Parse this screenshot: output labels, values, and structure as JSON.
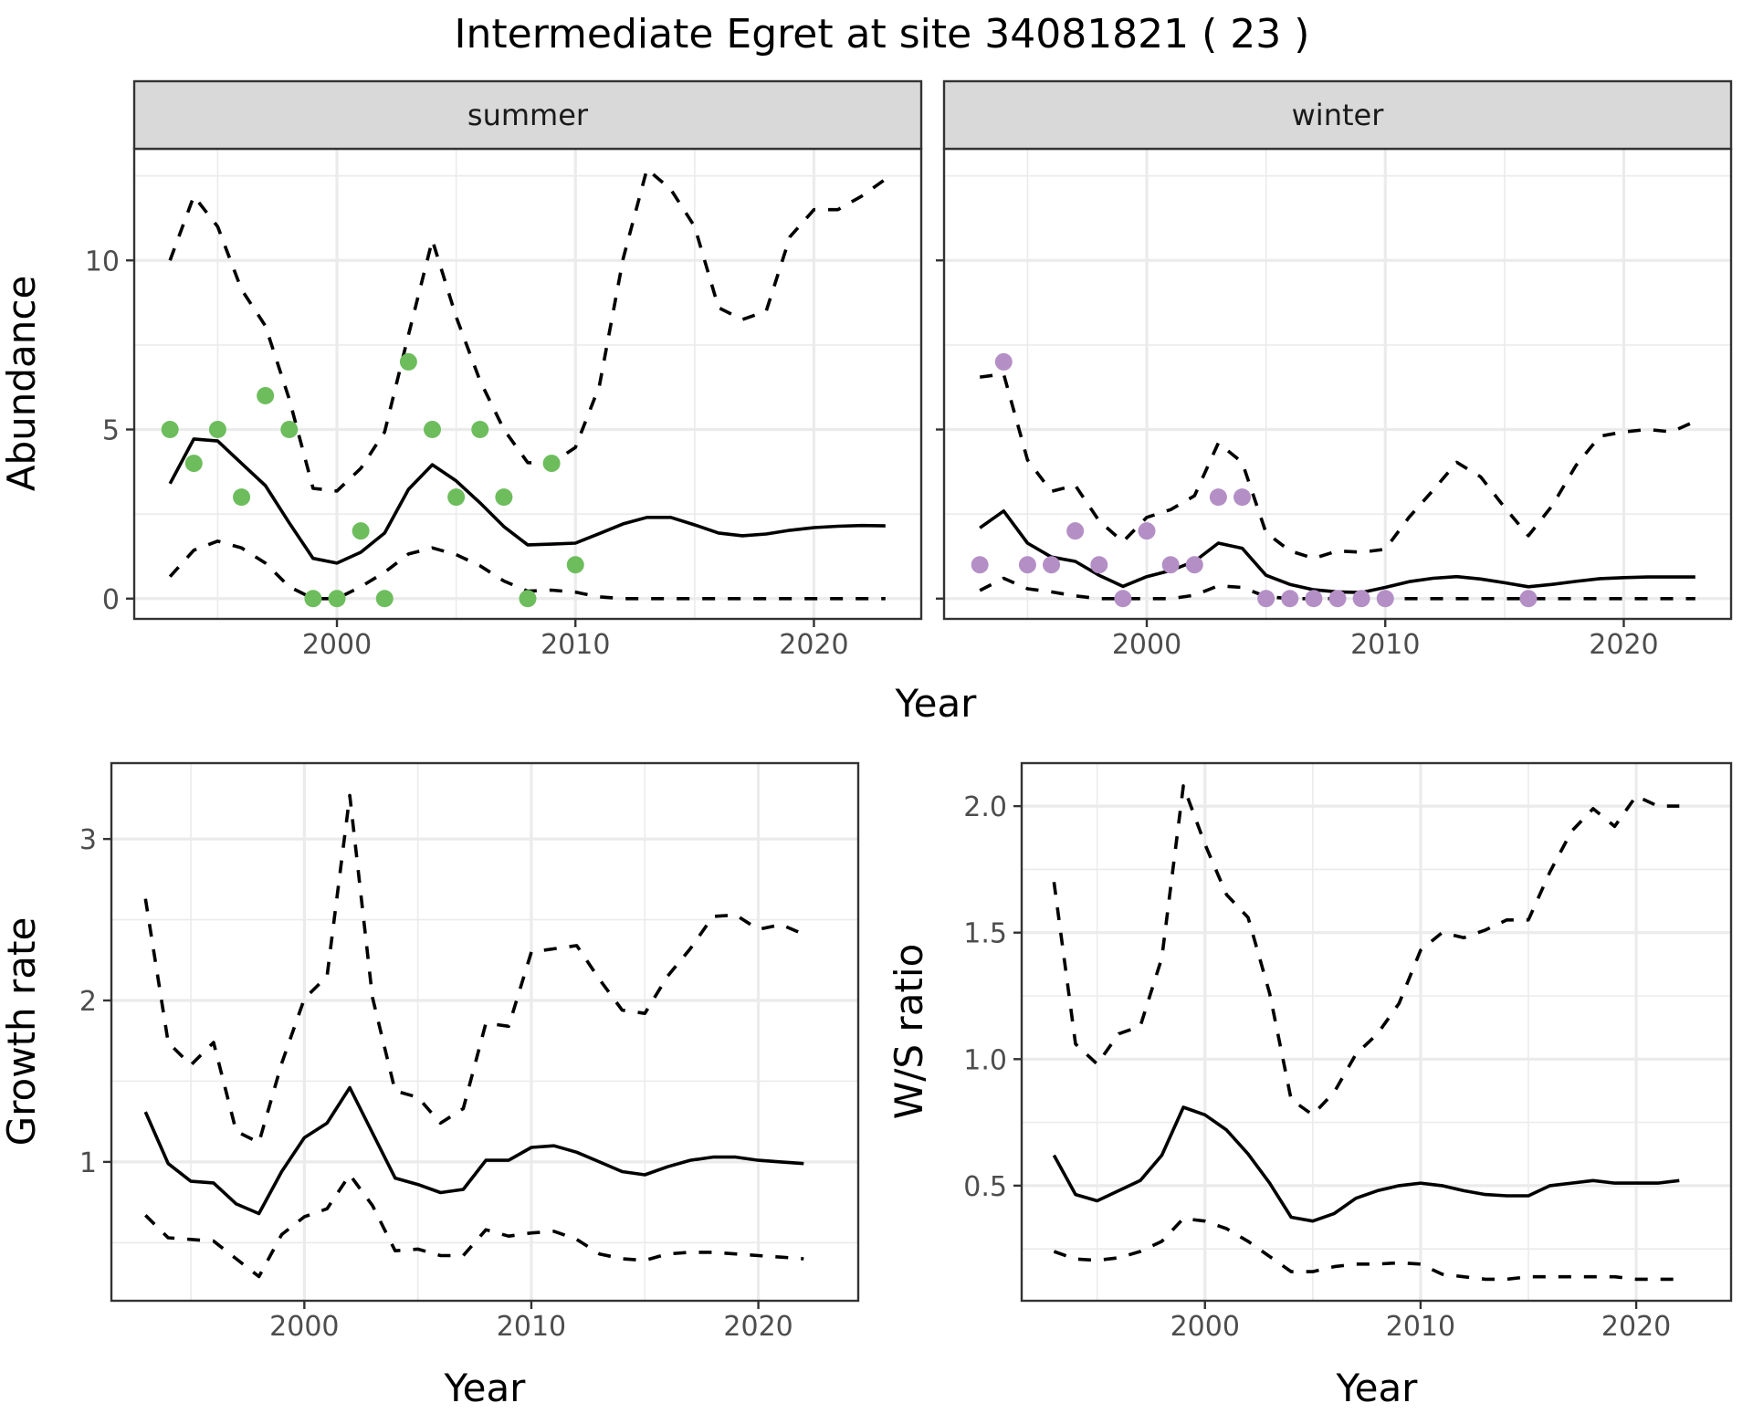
{
  "chart_data": {
    "title": "Intermediate Egret at site 34081821 ( 23 )",
    "colors": {
      "summer_points": "#6dbd5d",
      "winter_points": "#b48fc6",
      "line": "#000000",
      "strip_fill": "#d9d9d9",
      "grid": "#ebebeb",
      "frame": "#333333"
    },
    "abundance": {
      "type": "line",
      "ylabel": "Abundance",
      "xlabel": "Year",
      "xlim": [
        1991.5,
        2024.5
      ],
      "ylim": [
        -0.6,
        13.3
      ],
      "xticks": [
        2000,
        2010,
        2020
      ],
      "yticks": [
        0,
        5,
        10
      ],
      "grid": true,
      "panels": [
        {
          "strip": "summer",
          "points": {
            "x": [
              1993,
              1994,
              1995,
              1996,
              1997,
              1998,
              1999,
              2000,
              2001,
              2002,
              2003,
              2004,
              2005,
              2006,
              2007,
              2008,
              2009,
              2010
            ],
            "y": [
              5,
              4,
              5,
              3,
              6,
              5,
              0,
              0,
              2,
              0,
              7,
              5,
              3,
              5,
              3,
              0,
              4,
              1
            ]
          },
          "x": [
            1993,
            1994,
            1995,
            1996,
            1997,
            1998,
            1999,
            2000,
            2001,
            2002,
            2003,
            2004,
            2005,
            2006,
            2007,
            2008,
            2009,
            2010,
            2011,
            2012,
            2013,
            2014,
            2015,
            2016,
            2017,
            2018,
            2019,
            2020,
            2021,
            2022,
            2023
          ],
          "median": [
            3.4,
            4.72,
            4.66,
            4.0,
            3.34,
            2.24,
            1.19,
            1.05,
            1.37,
            1.94,
            3.23,
            3.96,
            3.48,
            2.83,
            2.13,
            1.59,
            1.61,
            1.64,
            1.92,
            2.21,
            2.4,
            2.4,
            2.18,
            1.94,
            1.86,
            1.91,
            2.02,
            2.1,
            2.14,
            2.16,
            2.15
          ],
          "upper": [
            10.0,
            11.9,
            11.0,
            9.14,
            8.06,
            5.9,
            3.26,
            3.18,
            3.85,
            4.93,
            7.8,
            10.6,
            8.33,
            6.44,
            5.0,
            4.02,
            4.0,
            4.47,
            6.28,
            10.05,
            12.7,
            12.1,
            11.0,
            8.6,
            8.25,
            8.5,
            10.7,
            11.5,
            11.5,
            11.9,
            12.4
          ],
          "lower": [
            0.65,
            1.43,
            1.7,
            1.5,
            1.05,
            0.35,
            0.0,
            0.0,
            0.35,
            0.78,
            1.32,
            1.5,
            1.3,
            0.97,
            0.52,
            0.22,
            0.25,
            0.19,
            0.05,
            0,
            0,
            0,
            0,
            0,
            0,
            0,
            0,
            0,
            0,
            0,
            0
          ]
        },
        {
          "strip": "winter",
          "points": {
            "x": [
              1993,
              1994,
              1995,
              1996,
              1997,
              1998,
              1999,
              2000,
              2001,
              2002,
              2003,
              2004,
              2005,
              2006,
              2007,
              2008,
              2009,
              2010,
              2016
            ],
            "y": [
              1,
              7,
              1,
              1,
              2,
              1,
              0,
              2,
              1,
              1,
              3,
              3,
              0,
              0,
              0,
              0,
              0,
              0,
              0
            ]
          },
          "x": [
            1993,
            1994,
            1995,
            1996,
            1997,
            1998,
            1999,
            2000,
            2001,
            2002,
            2003,
            2004,
            2005,
            2006,
            2007,
            2008,
            2009,
            2010,
            2011,
            2012,
            2013,
            2014,
            2015,
            2016,
            2017,
            2018,
            2019,
            2020,
            2021,
            2022,
            2023
          ],
          "median": [
            2.09,
            2.59,
            1.64,
            1.23,
            1.1,
            0.69,
            0.36,
            0.65,
            0.83,
            1.1,
            1.64,
            1.49,
            0.69,
            0.42,
            0.26,
            0.2,
            0.18,
            0.33,
            0.5,
            0.6,
            0.65,
            0.58,
            0.47,
            0.35,
            0.42,
            0.51,
            0.59,
            0.62,
            0.64,
            0.64,
            0.64
          ],
          "upper": [
            6.55,
            6.64,
            4.1,
            3.17,
            3.35,
            2.3,
            1.68,
            2.4,
            2.63,
            3.04,
            4.6,
            4.03,
            1.95,
            1.41,
            1.19,
            1.41,
            1.37,
            1.46,
            2.41,
            3.2,
            4.03,
            3.6,
            2.7,
            1.86,
            2.75,
            3.94,
            4.8,
            4.93,
            5.0,
            4.93,
            5.24
          ],
          "lower": [
            0.24,
            0.6,
            0.29,
            0.2,
            0.08,
            0,
            0,
            0,
            0,
            0.1,
            0.38,
            0.33,
            0.06,
            0,
            0,
            0,
            0,
            0,
            0,
            0,
            0,
            0,
            0,
            0,
            0,
            0,
            0,
            0,
            0,
            0,
            0
          ]
        }
      ]
    },
    "growth_rate": {
      "type": "line",
      "ylabel": "Growth rate",
      "xlabel": "Year",
      "xlim": [
        1991.5,
        2024.4
      ],
      "ylim": [
        0.14,
        3.47
      ],
      "xticks": [
        2000,
        2010,
        2020
      ],
      "yticks": [
        1,
        2,
        3
      ],
      "grid": true,
      "x": [
        1993,
        1994,
        1995,
        1996,
        1997,
        1998,
        1999,
        2000,
        2001,
        2002,
        2003,
        2004,
        2005,
        2006,
        2007,
        2008,
        2009,
        2010,
        2011,
        2012,
        2013,
        2014,
        2015,
        2016,
        2017,
        2018,
        2019,
        2020,
        2021,
        2022
      ],
      "median": [
        1.31,
        0.99,
        0.88,
        0.87,
        0.74,
        0.68,
        0.94,
        1.15,
        1.24,
        1.46,
        1.18,
        0.9,
        0.86,
        0.81,
        0.83,
        1.01,
        1.01,
        1.09,
        1.1,
        1.06,
        1.0,
        0.94,
        0.92,
        0.97,
        1.01,
        1.03,
        1.03,
        1.01,
        1.0,
        0.99
      ],
      "upper": [
        2.63,
        1.74,
        1.6,
        1.74,
        1.19,
        1.12,
        1.61,
        2.01,
        2.15,
        3.27,
        2.02,
        1.44,
        1.4,
        1.24,
        1.33,
        1.86,
        1.84,
        2.3,
        2.32,
        2.34,
        2.13,
        1.94,
        1.92,
        2.15,
        2.32,
        2.52,
        2.53,
        2.44,
        2.47,
        2.41
      ],
      "lower": [
        0.67,
        0.53,
        0.52,
        0.51,
        0.4,
        0.29,
        0.55,
        0.66,
        0.71,
        0.92,
        0.73,
        0.45,
        0.46,
        0.42,
        0.42,
        0.58,
        0.54,
        0.56,
        0.57,
        0.52,
        0.43,
        0.4,
        0.39,
        0.43,
        0.44,
        0.44,
        0.43,
        0.42,
        0.41,
        0.4
      ]
    },
    "ws_ratio": {
      "type": "line",
      "ylabel": "W/S ratio",
      "xlabel": "Year",
      "xlim": [
        1991.5,
        2024.4
      ],
      "ylim": [
        0.045,
        2.17
      ],
      "xticks": [
        2000,
        2010,
        2020
      ],
      "yticks": [
        0.5,
        1.0,
        1.5,
        2.0
      ],
      "ytick_labels": [
        "0.5",
        "1.0",
        "1.5",
        "2.0"
      ],
      "grid": true,
      "x": [
        1993,
        1994,
        1995,
        1996,
        1997,
        1998,
        1999,
        2000,
        2001,
        2002,
        2003,
        2004,
        2005,
        2006,
        2007,
        2008,
        2009,
        2010,
        2011,
        2012,
        2013,
        2014,
        2015,
        2016,
        2017,
        2018,
        2019,
        2020,
        2021,
        2022
      ],
      "median": [
        0.62,
        0.465,
        0.44,
        0.48,
        0.52,
        0.62,
        0.81,
        0.78,
        0.72,
        0.625,
        0.51,
        0.375,
        0.36,
        0.39,
        0.45,
        0.48,
        0.5,
        0.51,
        0.5,
        0.48,
        0.465,
        0.46,
        0.46,
        0.5,
        0.51,
        0.52,
        0.51,
        0.51,
        0.51,
        0.52
      ],
      "upper": [
        1.7,
        1.06,
        0.98,
        1.1,
        1.13,
        1.4,
        2.08,
        1.85,
        1.65,
        1.56,
        1.26,
        0.84,
        0.78,
        0.87,
        1.02,
        1.1,
        1.22,
        1.43,
        1.5,
        1.48,
        1.51,
        1.55,
        1.55,
        1.74,
        1.9,
        1.99,
        1.92,
        2.04,
        2.0,
        2.0
      ],
      "lower": [
        0.24,
        0.21,
        0.205,
        0.215,
        0.24,
        0.28,
        0.37,
        0.36,
        0.33,
        0.28,
        0.22,
        0.16,
        0.16,
        0.18,
        0.19,
        0.19,
        0.195,
        0.19,
        0.15,
        0.14,
        0.13,
        0.13,
        0.14,
        0.14,
        0.14,
        0.14,
        0.14,
        0.13,
        0.13,
        0.13
      ]
    }
  }
}
